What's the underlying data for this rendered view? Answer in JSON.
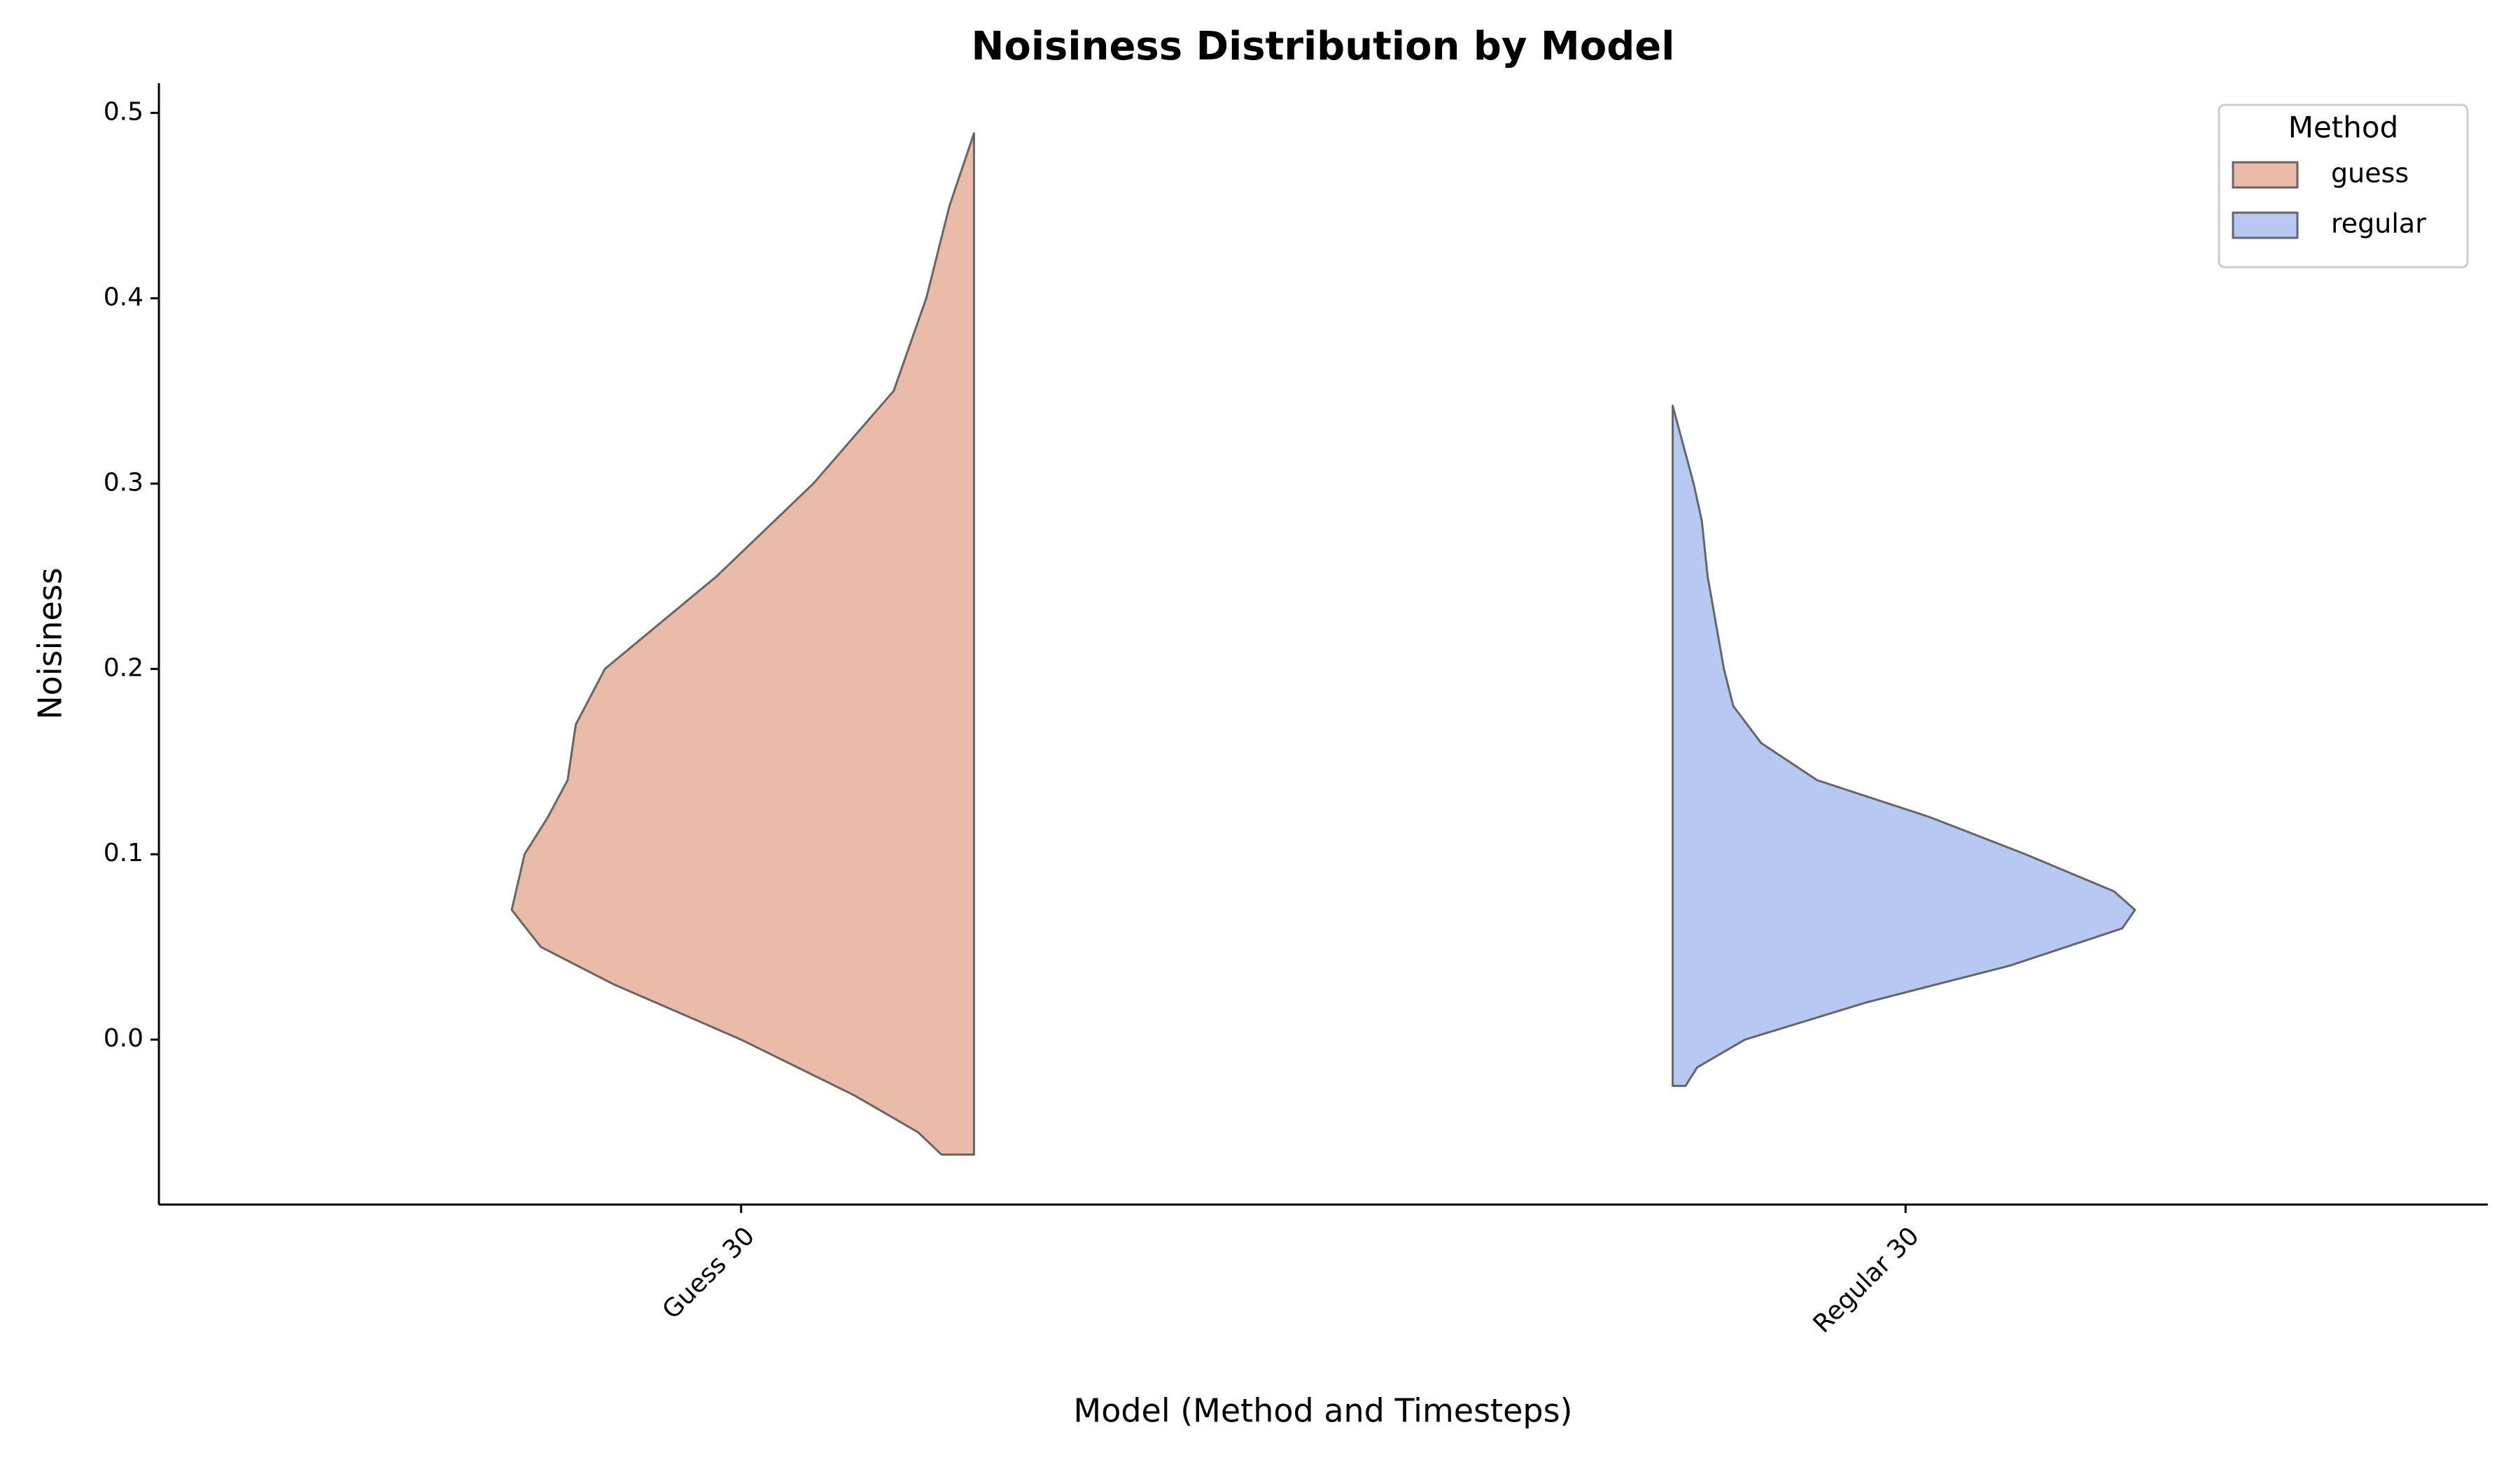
{
  "chart_data": {
    "type": "violin",
    "title": "Noisiness Distribution by Model",
    "x_label": "Model (Method and Timesteps)",
    "y_label": "Noisiness",
    "categories": [
      "Guess 30",
      "Regular 30"
    ],
    "ylim": [
      -0.089,
      0.516
    ],
    "yticks": [
      {
        "value": 0,
        "label": "0.0"
      },
      0.1,
      0.2,
      0.3,
      0.4,
      0.5
    ],
    "legend_title": "Method",
    "legend": "upper right",
    "series": [
      {
        "name": "guess",
        "color": "#eabba6",
        "category": 0,
        "side": "left",
        "y": [
          0.489,
          0.45,
          0.4,
          0.35,
          0.3,
          0.25,
          0.2,
          0.17,
          0.14,
          0.12,
          0.1,
          0.07,
          0.05,
          0.03,
          0.0,
          -0.03,
          -0.05,
          -0.062
        ],
        "density": [
          0,
          0.021,
          0.041,
          0.069,
          0.138,
          0.221,
          0.317,
          0.342,
          0.349,
          0.366,
          0.386,
          0.397,
          0.372,
          0.31,
          0.2,
          0.103,
          0.048,
          0.028
        ]
      },
      {
        "name": "regular",
        "color": "#b5c9f3",
        "category": 1,
        "side": "right",
        "y": [
          0.342,
          0.3,
          0.28,
          0.25,
          0.2,
          0.18,
          0.16,
          0.14,
          0.12,
          0.1,
          0.08,
          0.07,
          0.06,
          0.04,
          0.02,
          0.0,
          -0.015,
          -0.025
        ],
        "density": [
          0,
          0.018,
          0.025,
          0.03,
          0.044,
          0.052,
          0.076,
          0.124,
          0.221,
          0.303,
          0.379,
          0.397,
          0.386,
          0.29,
          0.166,
          0.062,
          0.021,
          0.011
        ]
      }
    ]
  }
}
